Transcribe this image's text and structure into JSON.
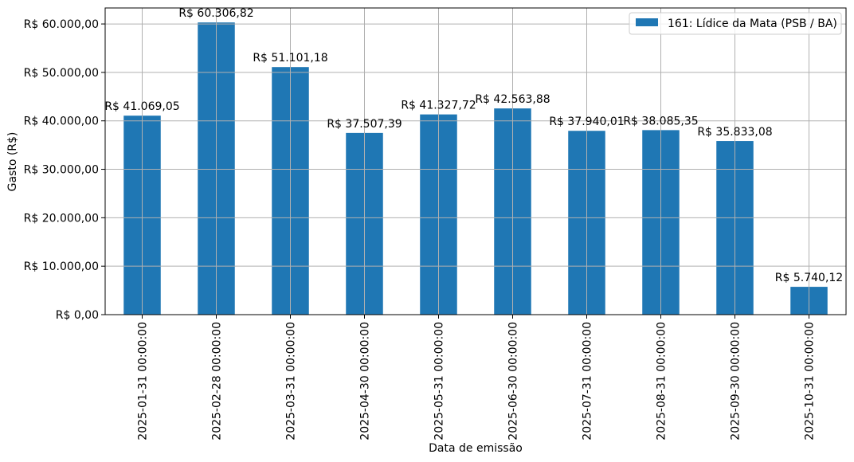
{
  "chart_data": {
    "type": "bar",
    "xlabel": "Data de emissão",
    "ylabel": "Gasto (R$)",
    "ylim": [
      0,
      63300
    ],
    "yticks": [
      0,
      10000,
      20000,
      30000,
      40000,
      50000,
      60000
    ],
    "ytick_labels": [
      "R$ 0,00",
      "R$ 10.000,00",
      "R$ 20.000,00",
      "R$ 30.000,00",
      "R$ 40.000,00",
      "R$ 50.000,00",
      "R$ 60.000,00"
    ],
    "categories": [
      "2025-01-31 00:00:00",
      "2025-02-28 00:00:00",
      "2025-03-31 00:00:00",
      "2025-04-30 00:00:00",
      "2025-05-31 00:00:00",
      "2025-06-30 00:00:00",
      "2025-07-31 00:00:00",
      "2025-08-31 00:00:00",
      "2025-09-30 00:00:00",
      "2025-10-31 00:00:00"
    ],
    "series": [
      {
        "name": "161: Lídice da Mata (PSB / BA)",
        "color": "#1f77b4",
        "values": [
          41069.05,
          60306.82,
          51101.18,
          37507.39,
          41327.72,
          42563.88,
          37940.01,
          38085.35,
          35833.08,
          5740.12
        ],
        "data_labels": [
          "R$ 41.069,05",
          "R$ 60.306,82",
          "R$ 51.101,18",
          "R$ 37.507,39",
          "R$ 41.327,72",
          "R$ 42.563,88",
          "R$ 37.940,01",
          "R$ 38.085,35",
          "R$ 35.833,08",
          "R$ 5.740,12"
        ]
      }
    ],
    "grid": true,
    "legend_position": "top-right"
  }
}
